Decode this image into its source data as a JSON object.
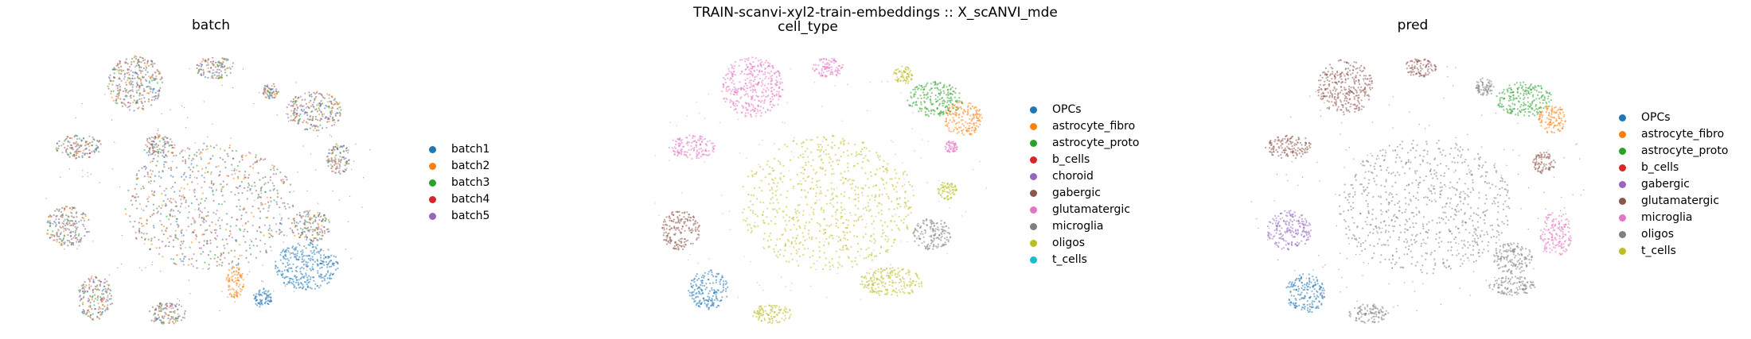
{
  "figure": {
    "suptitle": "TRAIN-scanvi-xyl2-train-embeddings :: X_scANVI_mde"
  },
  "chart_data": [
    {
      "type": "scatter",
      "title": "batch",
      "legend_position": "right",
      "axes": "off",
      "categories": [
        "batch1",
        "batch2",
        "batch3",
        "batch4",
        "batch5"
      ],
      "colors": [
        "#1f77b4",
        "#ff7f0e",
        "#2ca02c",
        "#d62728",
        "#9467bd"
      ],
      "note_regions": [
        {
          "category": "mixed",
          "color_mix": [
            "#8c564b",
            "#ff7f0e",
            "#1f77b4",
            "#2ca02c",
            "#9467bd"
          ]
        }
      ]
    },
    {
      "type": "scatter",
      "title": "cell_type",
      "legend_position": "right",
      "axes": "off",
      "categories": [
        "OPCs",
        "astrocyte_fibro",
        "astrocyte_proto",
        "b_cells",
        "choroid",
        "gabergic",
        "glutamatergic",
        "microglia",
        "oligos",
        "t_cells"
      ],
      "colors": [
        "#1f77b4",
        "#ff7f0e",
        "#2ca02c",
        "#d62728",
        "#9467bd",
        "#8c564b",
        "#e377c2",
        "#7f7f7f",
        "#bcbd22",
        "#17becf"
      ]
    },
    {
      "type": "scatter",
      "title": "pred",
      "legend_position": "right",
      "axes": "off",
      "categories": [
        "OPCs",
        "astrocyte_fibro",
        "astrocyte_proto",
        "b_cells",
        "gabergic",
        "glutamatergic",
        "microglia",
        "oligos",
        "t_cells"
      ],
      "colors": [
        "#1f77b4",
        "#ff7f0e",
        "#2ca02c",
        "#d62728",
        "#9467bd",
        "#8c564b",
        "#e377c2",
        "#7f7f7f",
        "#bcbd22"
      ]
    }
  ]
}
